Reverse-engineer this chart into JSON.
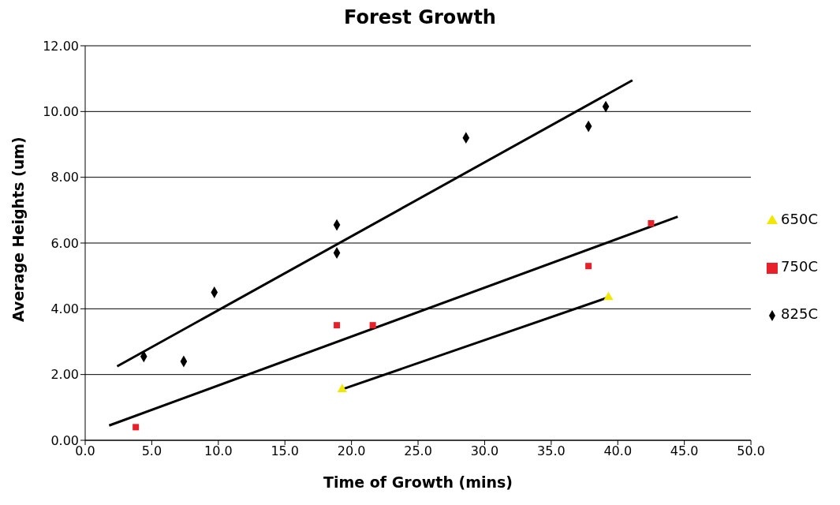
{
  "chart_data": {
    "type": "scatter",
    "title": "Forest Growth",
    "xlabel": "Time of Growth (mins)",
    "ylabel": "Average Heights (um)",
    "xlim": [
      0,
      50
    ],
    "ylim": [
      0,
      12
    ],
    "xticks": [
      {
        "value": 0,
        "label": "0.0"
      },
      {
        "value": 5,
        "label": "5.0"
      },
      {
        "value": 10,
        "label": "10.0"
      },
      {
        "value": 15,
        "label": "15.0"
      },
      {
        "value": 20,
        "label": "20.0"
      },
      {
        "value": 25,
        "label": "25.0"
      },
      {
        "value": 30,
        "label": "30.0"
      },
      {
        "value": 35,
        "label": "35.0"
      },
      {
        "value": 40,
        "label": "40.0"
      },
      {
        "value": 45,
        "label": "45.0"
      },
      {
        "value": 50,
        "label": "50.0"
      }
    ],
    "yticks": [
      {
        "value": 0,
        "label": "0.00"
      },
      {
        "value": 2,
        "label": "2.00"
      },
      {
        "value": 4,
        "label": "4.00"
      },
      {
        "value": 6,
        "label": "6.00"
      },
      {
        "value": 8,
        "label": "8.00"
      },
      {
        "value": 10,
        "label": "10.00"
      },
      {
        "value": 12,
        "label": "12.00"
      }
    ],
    "grid": "y",
    "legend": "right",
    "series": [
      {
        "name": "825C",
        "color": "#000000",
        "marker": "diamond",
        "x": [
          4.4,
          7.4,
          9.7,
          18.9,
          18.9,
          28.6,
          37.8,
          39.1
        ],
        "values": [
          2.55,
          2.4,
          4.5,
          6.55,
          5.7,
          9.2,
          9.55,
          10.15
        ]
      },
      {
        "name": "750C",
        "color": "#e8202a",
        "marker": "square",
        "x": [
          3.8,
          18.9,
          21.6,
          37.8,
          42.5
        ],
        "values": [
          0.4,
          3.5,
          3.5,
          5.3,
          6.6
        ]
      },
      {
        "name": "650C",
        "color": "#f0e800",
        "marker": "triangle",
        "x": [
          19.3,
          39.3
        ],
        "values": [
          1.55,
          4.35
        ]
      },
      {
        "type": "line",
        "color": "#000000",
        "x": [
          2.4,
          41.1
        ],
        "values": [
          2.25,
          10.95
        ]
      },
      {
        "type": "line",
        "color": "#000000",
        "x": [
          1.8,
          44.5
        ],
        "values": [
          0.45,
          6.8
        ]
      },
      {
        "type": "line",
        "color": "#000000",
        "x": [
          19.3,
          39.3
        ],
        "values": [
          1.55,
          4.35
        ]
      }
    ]
  }
}
